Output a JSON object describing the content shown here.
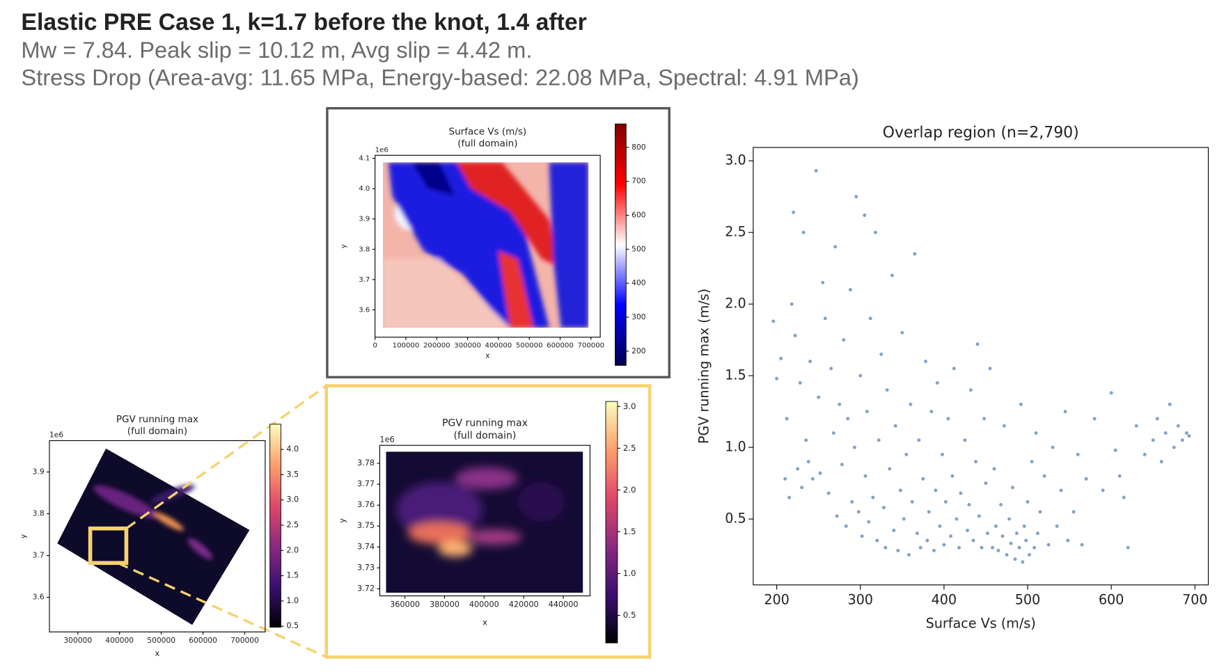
{
  "header": {
    "title": "Elastic PRE Case 1, k=1.7 before the knot, 1.4 after",
    "line_1": "Mw = 7.84. Peak slip = 10.12 m, Avg slip = 4.42 m.",
    "line_2": "Stress Drop (Area-avg: 11.65 MPa, Energy-based: 22.08 MPa, Spectral: 4.91 MPa)"
  },
  "chart_data": [
    {
      "type": "heatmap",
      "title": "Surface Vs (m/s)",
      "subtitle": "(full domain)",
      "x_label": "x",
      "y_label": "y",
      "offset_label": "1e6",
      "xlim": [
        0,
        730000
      ],
      "ylim": [
        3.51,
        4.11
      ],
      "xticks": [
        0,
        100000,
        200000,
        300000,
        400000,
        500000,
        600000,
        700000
      ],
      "yticks": [
        3.6,
        3.7,
        3.8,
        3.9,
        {
          "value": 4.0,
          "label": "4.0"
        },
        4.1
      ],
      "colorbar": {
        "colormap": "seismic",
        "lim": [
          158,
          869
        ],
        "ticks": [
          200,
          300,
          400,
          500,
          600,
          700,
          800
        ]
      }
    },
    {
      "type": "heatmap",
      "title": "PGV running max",
      "subtitle": "(full domain)",
      "x_label": "x",
      "y_label": "y",
      "offset_label": "1e6",
      "xlim": [
        232000,
        749000
      ],
      "ylim": [
        3.517,
        3.975
      ],
      "xticks": [
        300000,
        400000,
        500000,
        600000,
        700000
      ],
      "yticks": [
        3.6,
        3.7,
        3.8,
        3.9
      ],
      "colorbar": {
        "colormap": "magma",
        "lim": [
          0.48,
          4.5
        ],
        "ticks": [
          0.5,
          {
            "value": 1.0,
            "label": "1.0"
          },
          1.5,
          {
            "value": 2.0,
            "label": "2.0"
          },
          2.5,
          {
            "value": 3.0,
            "label": "3.0"
          },
          3.5,
          {
            "value": 4.0,
            "label": "4.0"
          }
        ]
      }
    },
    {
      "type": "heatmap",
      "title": "PGV running max",
      "subtitle": "(full domain)",
      "x_label": "x",
      "y_label": "y",
      "offset_label": "1e6",
      "xlim": [
        347300,
        453500
      ],
      "ylim": [
        3.7166,
        3.7886
      ],
      "xticks": [
        360000,
        380000,
        400000,
        420000,
        440000
      ],
      "yticks": [
        3.72,
        3.73,
        3.74,
        3.75,
        3.76,
        3.77,
        3.78
      ],
      "colorbar": {
        "colormap": "magma",
        "lim": [
          0.17,
          3.06
        ],
        "ticks": [
          0.5,
          {
            "value": 1.0,
            "label": "1.0"
          },
          1.5,
          {
            "value": 2.0,
            "label": "2.0"
          },
          2.5,
          {
            "value": 3.0,
            "label": "3.0"
          }
        ]
      }
    },
    {
      "type": "scatter",
      "title": "Overlap region (n=2,790)",
      "x_label": "Surface Vs (m/s)",
      "y_label": "PGV running max (m/s)",
      "color": "#5b84b1",
      "xlim": [
        171.9,
        716
      ],
      "ylim": [
        0.04,
        3.093
      ],
      "xticks": [
        200,
        300,
        400,
        500,
        600,
        700
      ],
      "yticks": [
        0.5,
        {
          "value": 1.0,
          "label": "1.0"
        },
        1.5,
        {
          "value": 2.0,
          "label": "2.0"
        },
        2.5,
        {
          "value": 3.0,
          "label": "3.0"
        }
      ],
      "x": [
        196,
        200,
        205,
        210,
        212,
        215,
        218,
        220,
        222,
        225,
        228,
        230,
        232,
        235,
        238,
        240,
        243,
        247,
        250,
        252,
        255,
        258,
        262,
        265,
        268,
        270,
        272,
        275,
        278,
        280,
        283,
        285,
        288,
        290,
        293,
        295,
        298,
        300,
        302,
        305,
        306,
        308,
        310,
        312,
        315,
        318,
        320,
        322,
        325,
        328,
        330,
        332,
        335,
        338,
        340,
        342,
        345,
        348,
        350,
        352,
        355,
        358,
        360,
        362,
        365,
        368,
        370,
        372,
        375,
        378,
        380,
        382,
        385,
        388,
        390,
        392,
        395,
        398,
        400,
        402,
        405,
        408,
        410,
        412,
        415,
        418,
        420,
        425,
        428,
        430,
        432,
        435,
        438,
        440,
        442,
        445,
        448,
        450,
        452,
        455,
        458,
        460,
        462,
        465,
        468,
        470,
        472,
        475,
        478,
        480,
        482,
        485,
        487,
        490,
        492,
        494,
        496,
        498,
        500,
        502,
        505,
        508,
        510,
        512,
        515,
        520,
        525,
        530,
        535,
        540,
        545,
        548,
        555,
        560,
        565,
        570,
        580,
        590,
        600,
        605,
        610,
        615,
        620,
        630,
        640,
        650,
        655,
        660,
        665,
        670,
        675,
        680,
        685,
        690,
        693
      ],
      "values": [
        1.88,
        1.48,
        1.62,
        0.78,
        1.2,
        0.65,
        2.0,
        2.64,
        1.78,
        0.85,
        1.45,
        0.72,
        2.5,
        1.05,
        0.9,
        1.6,
        0.78,
        2.93,
        1.35,
        0.82,
        2.15,
        1.9,
        0.68,
        1.55,
        1.1,
        2.4,
        0.52,
        1.3,
        0.88,
        1.75,
        0.45,
        1.2,
        2.1,
        0.62,
        1.0,
        2.75,
        0.55,
        1.5,
        0.38,
        2.62,
        0.8,
        1.25,
        0.48,
        1.9,
        0.65,
        2.5,
        0.35,
        1.05,
        1.65,
        0.58,
        0.3,
        1.4,
        0.85,
        2.2,
        0.42,
        1.15,
        0.28,
        0.7,
        1.8,
        0.5,
        0.95,
        0.25,
        1.3,
        0.62,
        2.35,
        0.4,
        1.05,
        0.3,
        0.78,
        1.6,
        0.35,
        0.55,
        1.25,
        0.28,
        0.7,
        1.45,
        0.45,
        0.95,
        0.32,
        0.62,
        1.2,
        0.38,
        0.8,
        1.55,
        0.5,
        0.3,
        0.68,
        1.05,
        0.42,
        0.6,
        1.4,
        0.35,
        0.9,
        1.72,
        0.52,
        0.3,
        1.2,
        0.75,
        0.4,
        1.55,
        0.3,
        0.85,
        0.45,
        0.28,
        0.6,
        0.38,
        1.15,
        0.25,
        0.5,
        0.33,
        0.72,
        0.22,
        0.4,
        0.3,
        1.3,
        0.2,
        0.45,
        0.35,
        0.62,
        0.25,
        0.9,
        0.3,
        1.1,
        0.4,
        0.55,
        0.8,
        0.32,
        1.0,
        0.45,
        0.7,
        1.25,
        0.35,
        0.55,
        0.95,
        0.32,
        0.78,
        1.2,
        0.7,
        1.38,
        0.98,
        0.8,
        0.65,
        0.3,
        1.15,
        0.95,
        1.05,
        1.2,
        0.9,
        1.1,
        1.3,
        1.0,
        1.15,
        1.05,
        1.1,
        1.08
      ]
    }
  ]
}
